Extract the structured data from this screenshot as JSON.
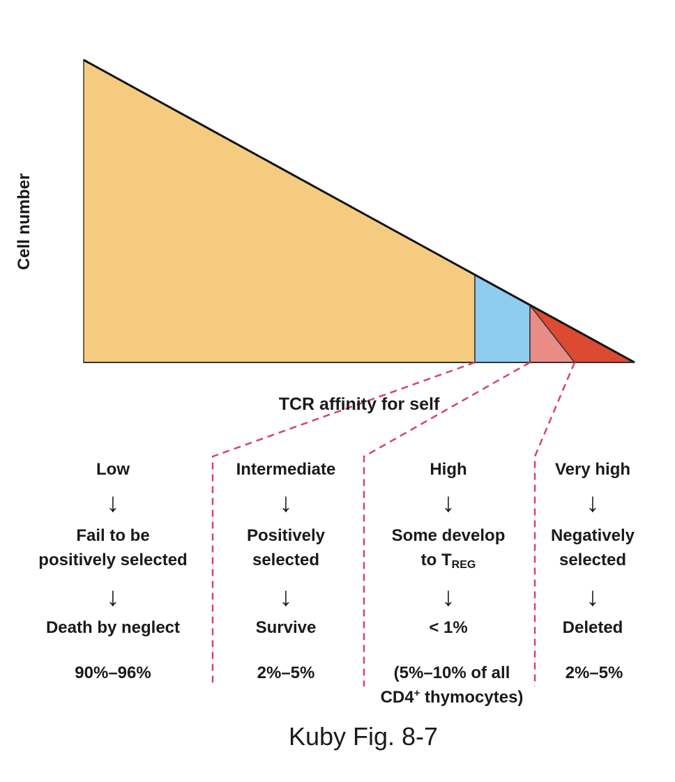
{
  "axes": {
    "y_label": "Cell number",
    "x_label": "TCR affinity for self"
  },
  "colors": {
    "low": "#f5cc7f",
    "intermediate": "#8ecdf0",
    "high": "#e98c86",
    "very_high": "#dc4a32",
    "dashed": "#d8426e"
  },
  "columns": [
    {
      "affinity": "Low",
      "outcome_1": "Fail to be",
      "outcome_2": "positively selected",
      "fate": "Death by neglect",
      "percent": "90%–96%"
    },
    {
      "affinity": "Intermediate",
      "outcome_1": "Positively",
      "outcome_2": "selected",
      "fate": "Survive",
      "percent": "2%–5%"
    },
    {
      "affinity": "High",
      "outcome_1": "Some develop",
      "outcome_2": "to T",
      "outcome_2_sub": "REG",
      "fate": "< 1%",
      "percent": "(5%–10% of all",
      "percent_2a": "CD4",
      "percent_2_sup": "+",
      "percent_2b": " thymocytes)"
    },
    {
      "affinity": "Very high",
      "outcome_1": "Negatively",
      "outcome_2": "selected",
      "fate": "Deleted",
      "percent": "2%–5%"
    }
  ],
  "arrow_glyph": "↓",
  "caption": "Kuby Fig. 8-7"
}
